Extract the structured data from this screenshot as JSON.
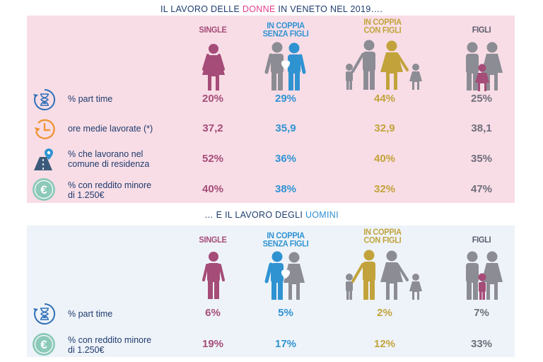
{
  "women_title": {
    "pre": "IL LAVORO DELLE ",
    "highlight": "DONNE",
    "post": " IN VENETO NEL 2019…."
  },
  "men_title": {
    "pre": "… E IL LAVORO DEGLI ",
    "highlight": "UOMINI"
  },
  "columns": {
    "single": "SINGLE",
    "coppia_l1": "IN COPPIA",
    "coppia_l2": "SENZA FIGLI",
    "coppiaf_l1": "IN COPPIA",
    "coppiaf_l2": "CON FIGLI",
    "figli": "FIGLI"
  },
  "women_rows": [
    {
      "label": "% part time",
      "icon": "hourglass-cycle-icon",
      "values": [
        "20%",
        "29%",
        "44%",
        "25%"
      ]
    },
    {
      "label": "ore medie lavorate (*)",
      "icon": "clock-icon",
      "values": [
        "37,2",
        "35,9",
        "32,9",
        "38,1"
      ]
    },
    {
      "label_l1": "% che lavorano nel",
      "label_l2": "comune di residenza",
      "icon": "road-pin-icon",
      "values": [
        "52%",
        "36%",
        "40%",
        "35%"
      ]
    },
    {
      "label_l1": "% con reddito minore",
      "label_l2": "di 1.250€",
      "icon": "euro-coin-icon",
      "values": [
        "40%",
        "38%",
        "32%",
        "47%"
      ]
    }
  ],
  "men_rows": [
    {
      "label": "% part time",
      "icon": "hourglass-cycle-icon",
      "values": [
        "6%",
        "5%",
        "2%",
        "7%"
      ]
    },
    {
      "label_l1": "% con reddito minore",
      "label_l2": "di 1.250€",
      "icon": "euro-coin-icon",
      "values": [
        "19%",
        "17%",
        "12%",
        "33%"
      ]
    }
  ],
  "colors": {
    "women_bg": "#f8dde6",
    "men_bg": "#eef3f9",
    "single": "#a54c78",
    "coppia": "#2f93d2",
    "coppia_figli": "#c2a33b",
    "figli": "#6e6e7a",
    "text": "#1f3b6e"
  }
}
